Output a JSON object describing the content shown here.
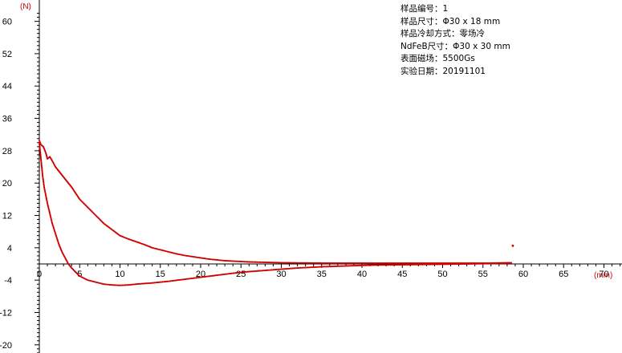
{
  "chart_data": {
    "type": "scatter",
    "xlabel": "(mm)",
    "ylabel": "(N)",
    "xlim": [
      0,
      72
    ],
    "ylim": [
      -23,
      63
    ],
    "xticks": [
      0,
      5,
      10,
      15,
      20,
      25,
      30,
      35,
      40,
      45,
      50,
      55,
      60,
      65,
      70
    ],
    "yticks": [
      60,
      52,
      44,
      36,
      28,
      20,
      12,
      4,
      -4,
      -12,
      -20
    ],
    "grid": false,
    "color": "#d00000",
    "series": [
      {
        "x": [
          0,
          0.2,
          0.5,
          0.8,
          1.0,
          1.3,
          1.6,
          2.0,
          2.4,
          2.8,
          3.2,
          3.6,
          4.0,
          4.5,
          5.0,
          6.0,
          7.0,
          8.0,
          9.0,
          10.0,
          11.0,
          12.0,
          13.0,
          14.0,
          15.0,
          16.0,
          17.0,
          18.0,
          19.0,
          20.0,
          21.0,
          22.0,
          23.0,
          24.0,
          25.0,
          26.0,
          28.0,
          30.0,
          32.0,
          35.0,
          38.0,
          41.0,
          45.0,
          49.0,
          53.0,
          56.0,
          58.5
        ],
        "y": [
          30.5,
          29.5,
          29.0,
          27.5,
          26.0,
          26.5,
          25.5,
          24.0,
          23.0,
          22.0,
          21.0,
          20.0,
          19.0,
          17.5,
          16.0,
          14.0,
          12.0,
          10.0,
          8.5,
          7.0,
          6.2,
          5.5,
          4.8,
          4.0,
          3.5,
          3.0,
          2.5,
          2.1,
          1.8,
          1.5,
          1.2,
          1.0,
          0.8,
          0.7,
          0.6,
          0.5,
          0.4,
          0.3,
          0.25,
          0.2,
          0.2,
          0.2,
          0.2,
          0.2,
          0.2,
          0.2,
          0.3
        ]
      },
      {
        "x": [
          0,
          0.2,
          0.4,
          0.6,
          0.8,
          1.0,
          1.3,
          1.6,
          2.0,
          2.4,
          2.8,
          3.2,
          3.6,
          4.0,
          4.5,
          5.0,
          5.5,
          6.0,
          7.0,
          8.0,
          9.0,
          10.0,
          11.0,
          12.0,
          14.0,
          16.0,
          18.0,
          20.0,
          22.0,
          24.0,
          26.0,
          28.0,
          30.0,
          32.0,
          35.0,
          38.0,
          41.0,
          45.0,
          49.0,
          53.0,
          56.0,
          58.5
        ],
        "y": [
          30.0,
          26.0,
          22.0,
          19.0,
          17.0,
          15.0,
          12.5,
          10.0,
          7.5,
          5.0,
          3.0,
          1.5,
          0.0,
          -1.0,
          -2.0,
          -3.0,
          -3.5,
          -4.0,
          -4.5,
          -5.0,
          -5.2,
          -5.3,
          -5.2,
          -5.0,
          -4.7,
          -4.3,
          -3.8,
          -3.3,
          -2.8,
          -2.3,
          -1.9,
          -1.6,
          -1.3,
          -1.0,
          -0.7,
          -0.5,
          -0.3,
          -0.2,
          -0.1,
          0.0,
          0.1,
          0.2
        ]
      },
      {
        "x": [
          58.7
        ],
        "y": [
          4.5
        ]
      }
    ]
  },
  "info_lines": [
    "样品编号：1",
    "样品尺寸：Φ30 x 18 mm",
    "样品冷却方式：零场冷",
    "NdFeB尺寸：Φ30 x 30 mm",
    "表面磁场：5500Gs",
    "实验日期：20191101"
  ]
}
